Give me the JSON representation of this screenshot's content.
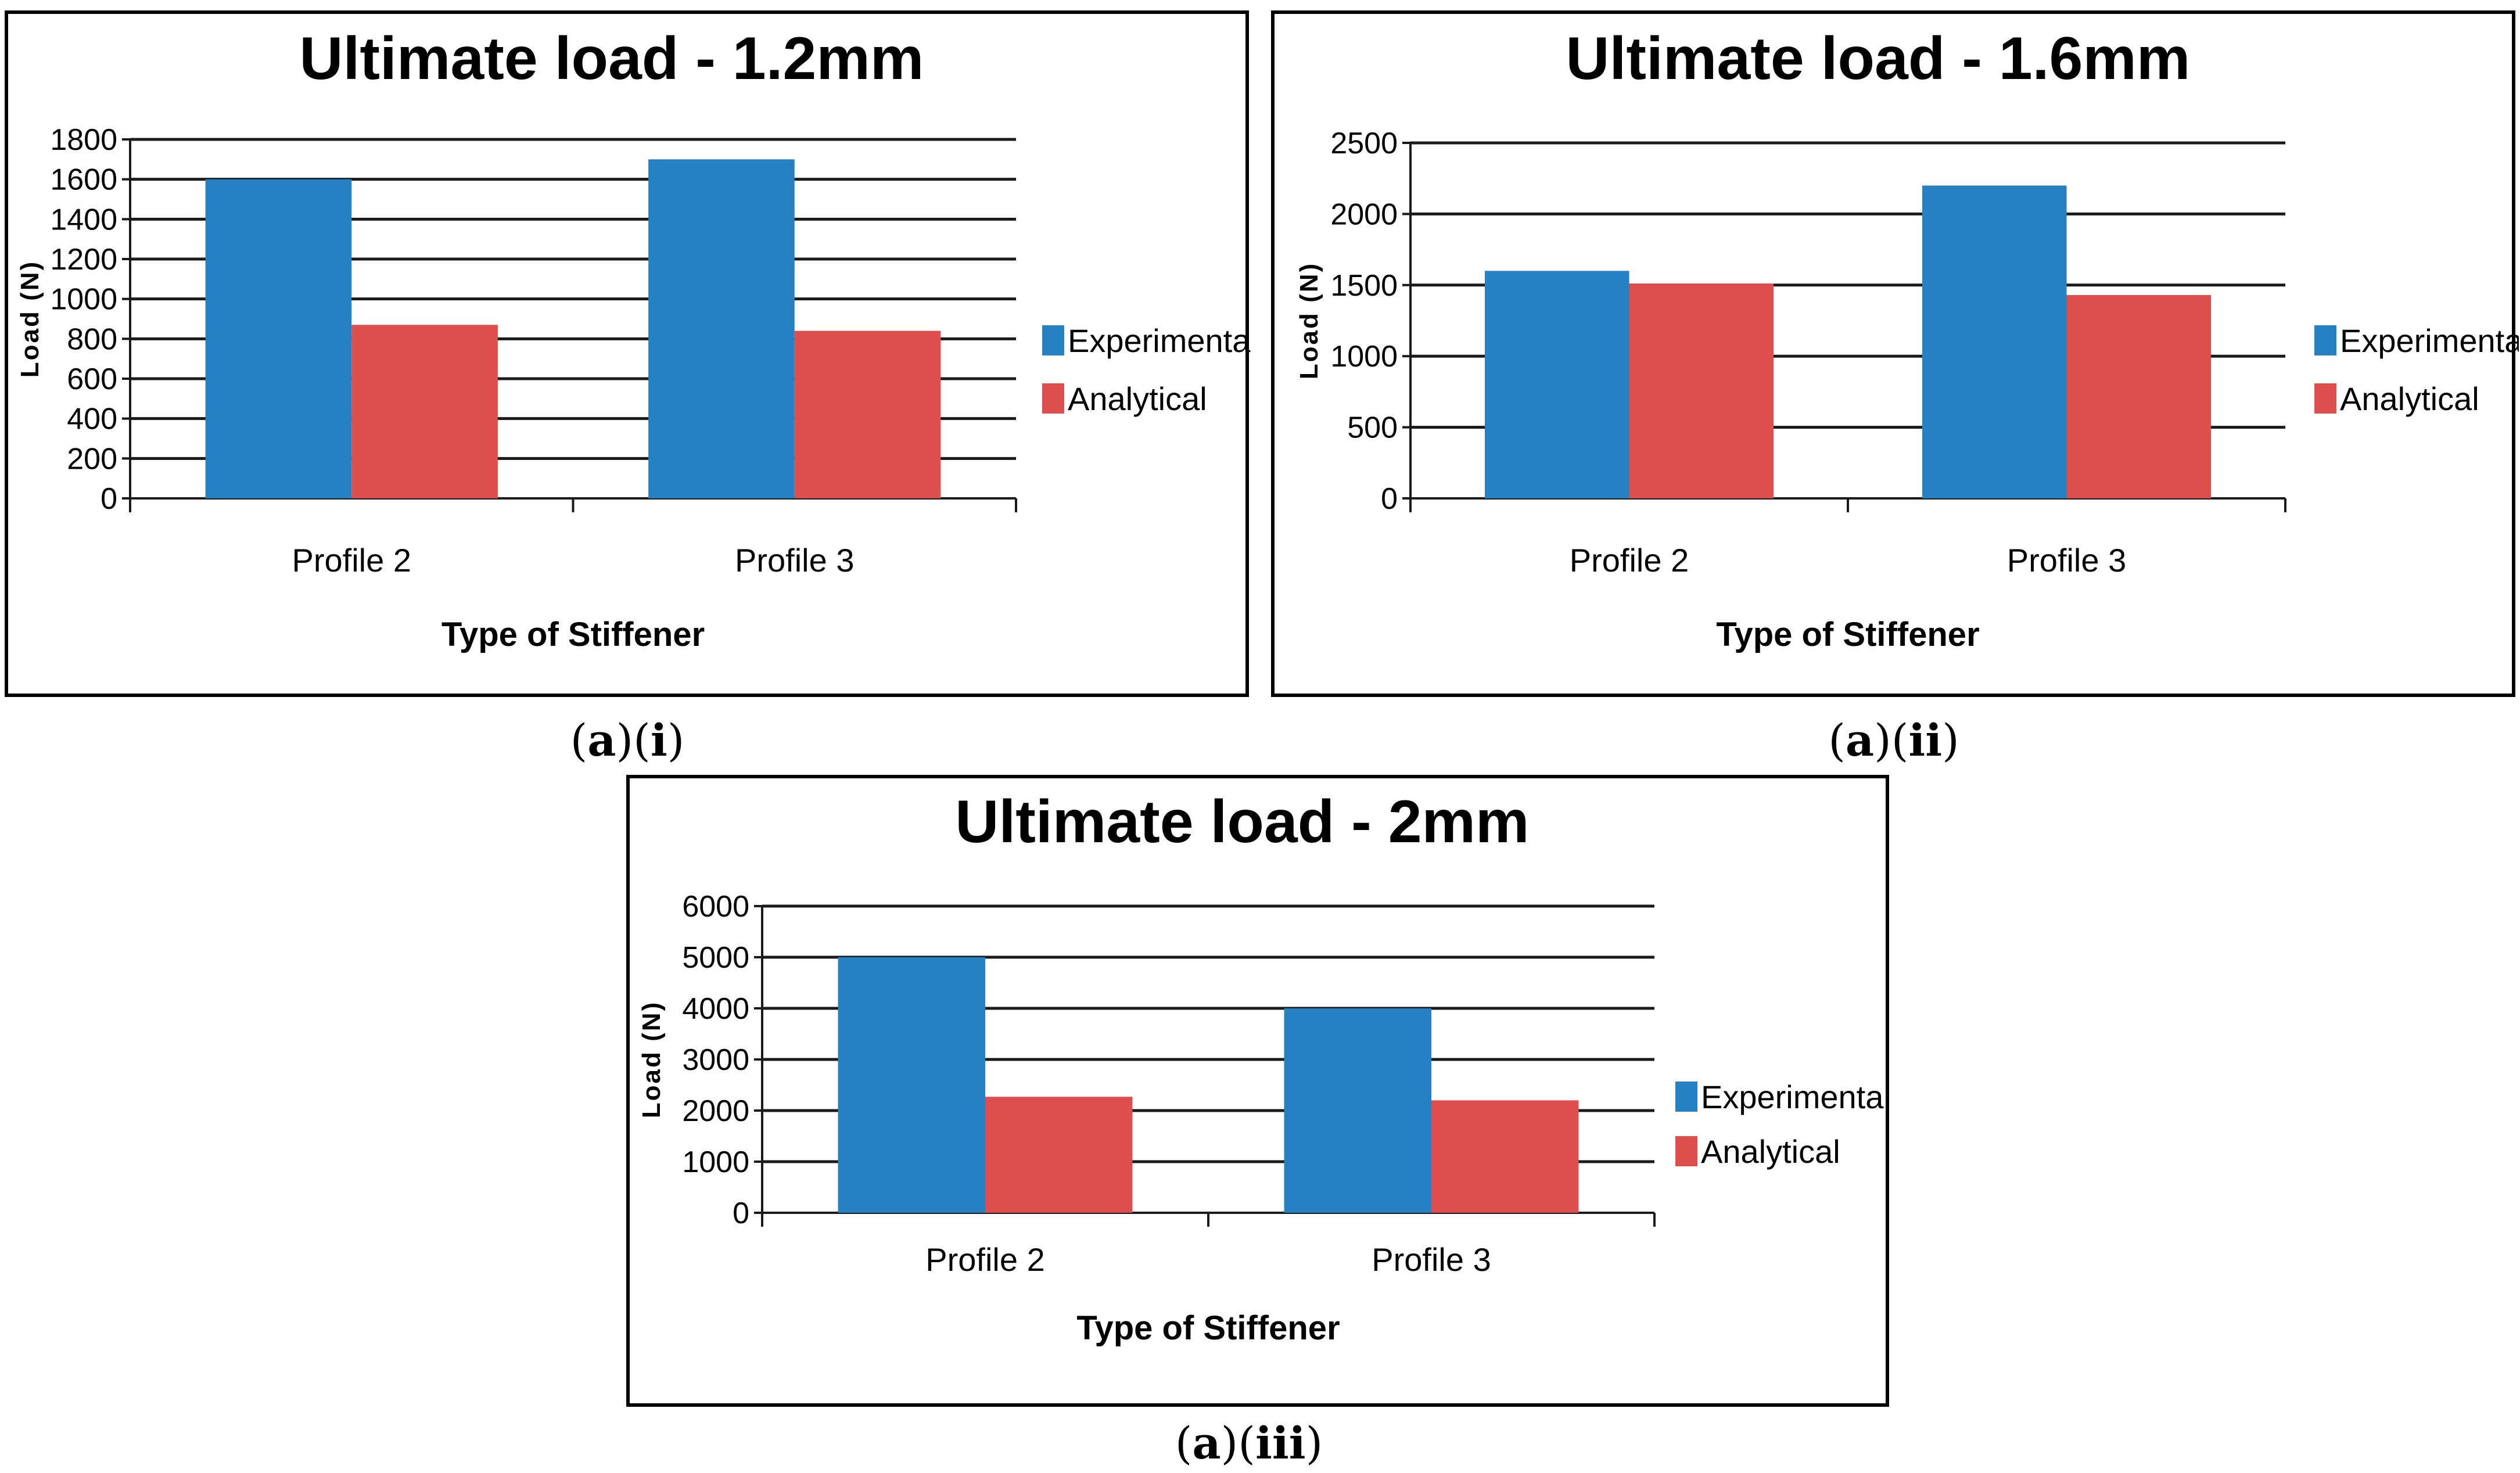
{
  "colors": {
    "experimental": "#2681c3",
    "analytical": "#dd4e4c",
    "grid": "#1a1a1a"
  },
  "chart_data": [
    {
      "type": "bar",
      "title": "Ultimate load - 1.2mm",
      "xlabel": "Type of Stiffener",
      "ylabel": "Load (N)",
      "categories": [
        "Profile 2",
        "Profile 3"
      ],
      "ylim": [
        0,
        1800
      ],
      "yticks": [
        0,
        200,
        400,
        600,
        800,
        1000,
        1200,
        1400,
        1600,
        1800
      ],
      "grid": true,
      "legend_position": "right",
      "series": [
        {
          "name": "Experimental",
          "values": [
            1600,
            1700
          ]
        },
        {
          "name": "Analytical",
          "values": [
            870,
            840
          ]
        }
      ],
      "caption": {
        "letter": "a",
        "roman": "i"
      }
    },
    {
      "type": "bar",
      "title": "Ultimate load - 1.6mm",
      "xlabel": "Type of Stiffener",
      "ylabel": "Load (N)",
      "categories": [
        "Profile 2",
        "Profile 3"
      ],
      "ylim": [
        0,
        2500
      ],
      "yticks": [
        0,
        500,
        1000,
        1500,
        2000,
        2500
      ],
      "grid": true,
      "legend_position": "right",
      "series": [
        {
          "name": "Experimental",
          "values": [
            1600,
            2200
          ]
        },
        {
          "name": "Analytical",
          "values": [
            1510,
            1430
          ]
        }
      ],
      "caption": {
        "letter": "a",
        "roman": "ii"
      }
    },
    {
      "type": "bar",
      "title": "Ultimate load - 2mm",
      "xlabel": "Type of Stiffener",
      "ylabel": "Load (N)",
      "categories": [
        "Profile 2",
        "Profile 3"
      ],
      "ylim": [
        0,
        6000
      ],
      "yticks": [
        0,
        1000,
        2000,
        3000,
        4000,
        5000,
        6000
      ],
      "grid": true,
      "legend_position": "right",
      "series": [
        {
          "name": "Experimental",
          "values": [
            5000,
            4000
          ]
        },
        {
          "name": "Analytical",
          "values": [
            2270,
            2200
          ]
        }
      ],
      "caption": {
        "letter": "a",
        "roman": "iii"
      }
    }
  ]
}
